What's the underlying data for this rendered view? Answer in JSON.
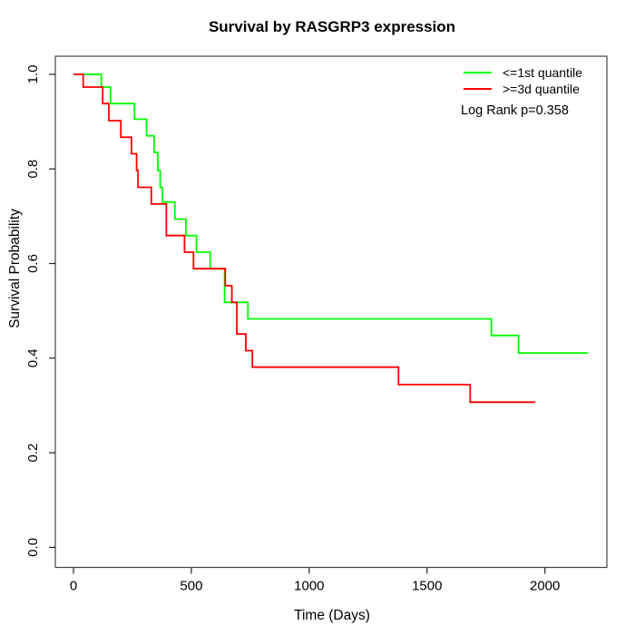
{
  "chart_data": {
    "type": "line",
    "subtype": "kaplan-meier-step",
    "title": "Survival by RASGRP3 expression",
    "xlabel": "Time (Days)",
    "ylabel": "Survival Probability",
    "x_ticks": [
      {
        "v": 0,
        "label": "0"
      },
      {
        "v": 500,
        "label": "500"
      },
      {
        "v": 1000,
        "label": "1000"
      },
      {
        "v": 1500,
        "label": "1500"
      },
      {
        "v": 2000,
        "label": "2000"
      }
    ],
    "y_ticks": [
      {
        "v": 0.0,
        "label": "0.0"
      },
      {
        "v": 0.2,
        "label": "0.2"
      },
      {
        "v": 0.4,
        "label": "0.4"
      },
      {
        "v": 0.6,
        "label": "0.6"
      },
      {
        "v": 0.8,
        "label": "0.8"
      },
      {
        "v": 1.0,
        "label": "1.0"
      }
    ],
    "xlim": [
      0,
      2260
    ],
    "ylim": [
      0,
      1.04
    ],
    "grid": false,
    "legend_position": "top-right",
    "annotation": "Log Rank p=0.358",
    "axis_color": "#444444",
    "series": [
      {
        "name": "<=1st quantile",
        "color": "#00ff00",
        "start": [
          0,
          1.0
        ],
        "drops": [
          [
            118,
            0.973
          ],
          [
            157,
            0.938
          ],
          [
            259,
            0.905
          ],
          [
            310,
            0.87
          ],
          [
            342,
            0.835
          ],
          [
            358,
            0.797
          ],
          [
            368,
            0.761
          ],
          [
            378,
            0.73
          ],
          [
            430,
            0.694
          ],
          [
            477,
            0.659
          ],
          [
            522,
            0.624
          ],
          [
            580,
            0.589
          ],
          [
            641,
            0.518
          ],
          [
            740,
            0.483
          ],
          [
            1773,
            0.448
          ],
          [
            1888,
            0.411
          ]
        ],
        "end_time": 2183
      },
      {
        "name": ">=3d quantile",
        "color": "#ff0000",
        "start": [
          0,
          1.0
        ],
        "drops": [
          [
            41,
            0.973
          ],
          [
            124,
            0.938
          ],
          [
            150,
            0.902
          ],
          [
            201,
            0.867
          ],
          [
            246,
            0.832
          ],
          [
            268,
            0.797
          ],
          [
            274,
            0.761
          ],
          [
            330,
            0.726
          ],
          [
            394,
            0.659
          ],
          [
            471,
            0.624
          ],
          [
            509,
            0.589
          ],
          [
            644,
            0.553
          ],
          [
            672,
            0.518
          ],
          [
            693,
            0.451
          ],
          [
            731,
            0.416
          ],
          [
            759,
            0.381
          ],
          [
            1379,
            0.344
          ],
          [
            1683,
            0.307
          ]
        ],
        "end_time": 1959
      }
    ]
  }
}
